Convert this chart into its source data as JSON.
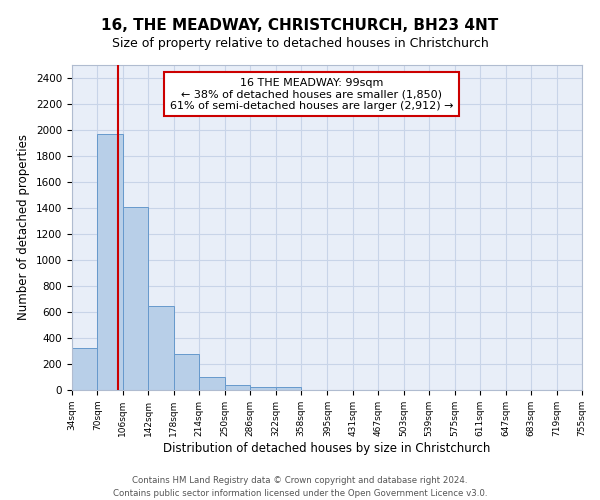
{
  "title": "16, THE MEADWAY, CHRISTCHURCH, BH23 4NT",
  "subtitle": "Size of property relative to detached houses in Christchurch",
  "xlabel": "Distribution of detached houses by size in Christchurch",
  "ylabel": "Number of detached properties",
  "footer1": "Contains HM Land Registry data © Crown copyright and database right 2024.",
  "footer2": "Contains public sector information licensed under the Open Government Licence v3.0.",
  "bin_edges": [
    34,
    70,
    106,
    142,
    178,
    214,
    250,
    286,
    322,
    358,
    395,
    431,
    467,
    503,
    539,
    575,
    611,
    647,
    683,
    719,
    755
  ],
  "bar_heights": [
    325,
    1970,
    1410,
    650,
    275,
    100,
    40,
    25,
    20,
    0,
    0,
    0,
    0,
    0,
    0,
    0,
    0,
    0,
    0,
    0
  ],
  "bar_color": "#b8cfe8",
  "bar_edge_color": "#6699cc",
  "property_size": 99,
  "property_label": "16 THE MEADWAY: 99sqm",
  "annotation_line1": "← 38% of detached houses are smaller (1,850)",
  "annotation_line2": "61% of semi-detached houses are larger (2,912) →",
  "vline_color": "#cc0000",
  "annotation_box_color": "#cc0000",
  "ylim": [
    0,
    2500
  ],
  "yticks": [
    0,
    200,
    400,
    600,
    800,
    1000,
    1200,
    1400,
    1600,
    1800,
    2000,
    2200,
    2400
  ],
  "grid_color": "#c8d4e8",
  "background_color": "#e8eef8"
}
